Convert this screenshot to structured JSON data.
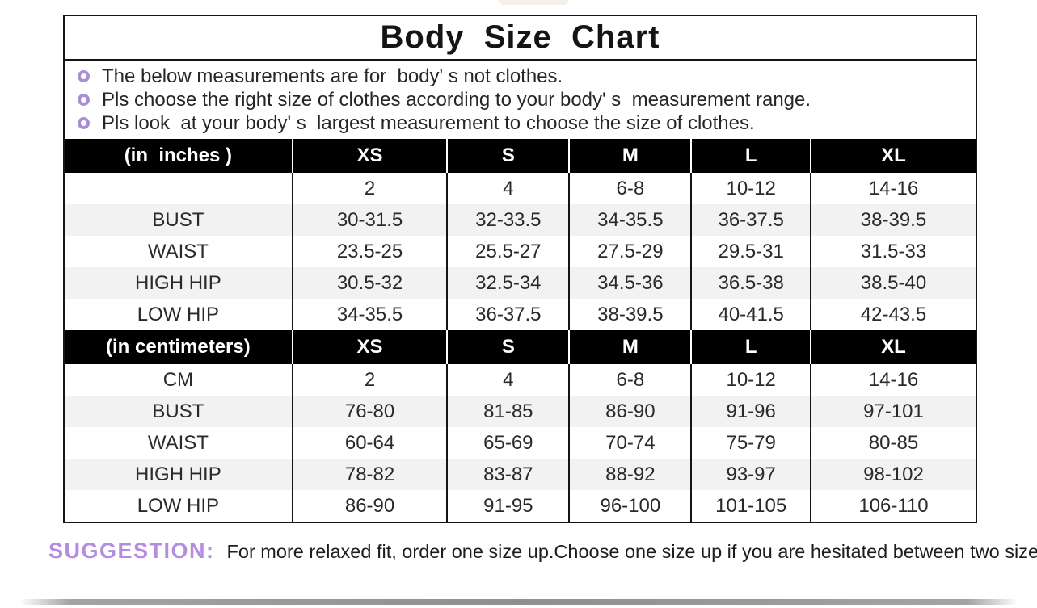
{
  "title": "Body  Size  Chart",
  "notes": {
    "bullet_icon": "ring-icon",
    "bullet_color": "#a98fd4",
    "items": [
      "The below measurements are for  body' s not clothes.",
      "Pls choose the right size of clothes according to your body' s  measurement range.",
      "Pls look  at your body' s  largest measurement to choose the size of clothes."
    ]
  },
  "chart_data": [
    {
      "type": "table",
      "title": "(in  inches )",
      "columns": [
        "XS",
        "S",
        "M",
        "L",
        "XL"
      ],
      "rows": [
        {
          "label": "",
          "values": [
            "2",
            "4",
            "6-8",
            "10-12",
            "14-16"
          ]
        },
        {
          "label": "BUST",
          "values": [
            "30-31.5",
            "32-33.5",
            "34-35.5",
            "36-37.5",
            "38-39.5"
          ]
        },
        {
          "label": "WAIST",
          "values": [
            "23.5-25",
            "25.5-27",
            "27.5-29",
            "29.5-31",
            "31.5-33"
          ]
        },
        {
          "label": "HIGH HIP",
          "values": [
            "30.5-32",
            "32.5-34",
            "34.5-36",
            "36.5-38",
            "38.5-40"
          ]
        },
        {
          "label": "LOW HIP",
          "values": [
            "34-35.5",
            "36-37.5",
            "38-39.5",
            "40-41.5",
            "42-43.5"
          ]
        }
      ]
    },
    {
      "type": "table",
      "title": "(in centimeters)",
      "columns": [
        "XS",
        "S",
        "M",
        "L",
        "XL"
      ],
      "rows": [
        {
          "label": "CM",
          "values": [
            "2",
            "4",
            "6-8",
            "10-12",
            "14-16"
          ]
        },
        {
          "label": "BUST",
          "values": [
            "76-80",
            "81-85",
            "86-90",
            "91-96",
            "97-101"
          ]
        },
        {
          "label": "WAIST",
          "values": [
            "60-64",
            "65-69",
            "70-74",
            "75-79",
            "80-85"
          ]
        },
        {
          "label": "HIGH HIP",
          "values": [
            "78-82",
            "83-87",
            "88-92",
            "93-97",
            "98-102"
          ]
        },
        {
          "label": "LOW HIP",
          "values": [
            "86-90",
            "91-95",
            "96-100",
            "101-105",
            "106-110"
          ]
        }
      ]
    }
  ],
  "suggestion": {
    "label": "SUGGESTION:",
    "text": "For more relaxed fit, order one size up.Choose one size up if you are hesitated between two sizes.",
    "label_color": "#b48ce0"
  },
  "colors": {
    "header_bg": "#000000",
    "header_text": "#ffffff",
    "row_alt_bg": "#f2f2f2",
    "border": "#151515",
    "bullet_purple": "#a98fd4",
    "suggestion_purple": "#b48ce0"
  }
}
